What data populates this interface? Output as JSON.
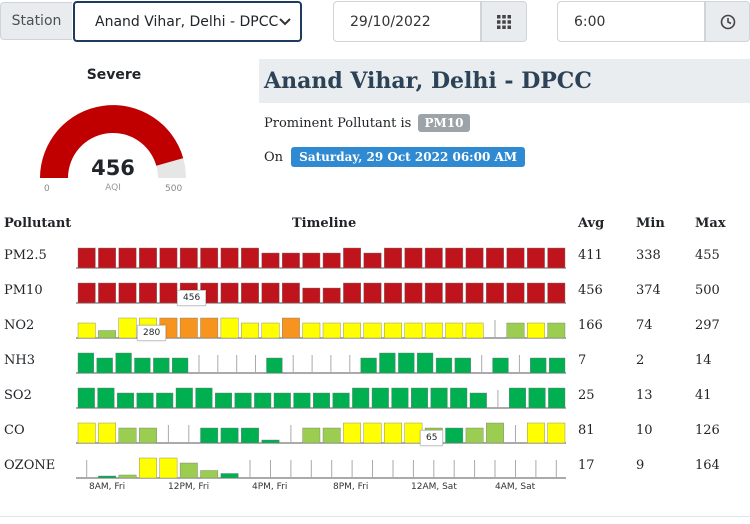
{
  "filters": {
    "station_label": "Station",
    "station_value": "Anand Vihar, Delhi - DPCC",
    "date_value": "29/10/2022",
    "time_value": "6:00",
    "calendar_icon": "calendar-grid-icon",
    "clock_icon": "clock-icon"
  },
  "gauge": {
    "status": "Severe",
    "value": "456",
    "unit": "AQI",
    "min": "0",
    "max": "500",
    "level": 0.912,
    "color": "#c00000"
  },
  "station": {
    "title": "Anand Vihar, Delhi - DPCC",
    "prominent_text": "Prominent Pollutant is",
    "prominent_pollutant": "PM10",
    "on_text": "On",
    "datetime": "Saturday, 29 Oct 2022 06:00 AM"
  },
  "table": {
    "headers": {
      "pollutant": "Pollutant",
      "timeline": "Timeline",
      "avg": "Avg",
      "min": "Min",
      "max": "Max"
    }
  },
  "chart_data": {
    "type": "bar",
    "x_tick_labels": [
      "8AM, Fri",
      "12PM, Fri",
      "4PM, Fri",
      "8PM, Fri",
      "12AM, Sat",
      "4AM, Sat"
    ],
    "series": [
      {
        "name": "PM2.5",
        "avg": "411",
        "min": "338",
        "max": "455",
        "levels": [
          2,
          2,
          2,
          2,
          2,
          2,
          2,
          2,
          2,
          1,
          1,
          1,
          1,
          2,
          1,
          2,
          2,
          2,
          2,
          2,
          2,
          2,
          2,
          2
        ],
        "color": "#c0141c"
      },
      {
        "name": "PM10",
        "avg": "456",
        "min": "374",
        "max": "500",
        "levels": [
          2,
          2,
          2,
          2,
          2,
          2,
          2,
          2,
          2,
          2,
          2,
          1,
          1,
          2,
          2,
          2,
          2,
          2,
          2,
          2,
          2,
          2,
          2,
          2
        ],
        "color": "#c0141c",
        "tooltip": "456"
      },
      {
        "name": "NO2",
        "avg": "166",
        "min": "74",
        "max": "297",
        "levels": [
          1,
          0.5,
          2,
          2,
          2,
          2,
          2,
          2,
          1,
          1,
          2,
          1,
          1,
          1,
          1,
          1,
          1,
          1,
          1,
          1,
          0,
          1,
          1,
          1
        ],
        "colors": [
          "#ffff00",
          "#9acd50",
          "#ffff00",
          "#ffff00",
          "#f7941d",
          "#f7941d",
          "#f7941d",
          "#ffff00",
          "#ffff00",
          "#ffff00",
          "#f7941d",
          "#ffff00",
          "#ffff00",
          "#ffff00",
          "#ffff00",
          "#ffff00",
          "#ffff00",
          "#ffff00",
          "#ffff00",
          "#ffff00",
          "#ffffff",
          "#9acd50",
          "#ffff00",
          "#9acd50"
        ],
        "tooltip": "280"
      },
      {
        "name": "NH3",
        "avg": "7",
        "min": "2",
        "max": "14",
        "levels": [
          2,
          1,
          2,
          1,
          1,
          1,
          0,
          0,
          0,
          0,
          1,
          0,
          0,
          0,
          0,
          1,
          2,
          2,
          2,
          1,
          1,
          0,
          1,
          0,
          1,
          1
        ],
        "color": "#00b050"
      },
      {
        "name": "SO2",
        "avg": "25",
        "min": "13",
        "max": "41",
        "levels": [
          2,
          2,
          1,
          1,
          1,
          2,
          2,
          1,
          1,
          1,
          1,
          1,
          1,
          1,
          2,
          2,
          2,
          2,
          2,
          2,
          1,
          0,
          2,
          2,
          2
        ],
        "color": "#00b050"
      },
      {
        "name": "CO",
        "avg": "81",
        "min": "10",
        "max": "126",
        "levels": [
          2,
          2,
          1,
          1,
          0,
          0,
          1,
          1,
          1,
          0.2,
          0,
          1,
          1,
          2,
          2,
          2,
          2,
          1,
          1,
          1,
          2,
          0,
          2,
          2
        ],
        "colors": [
          "#ffff00",
          "#ffff00",
          "#9acd50",
          "#9acd50",
          "#ffffff",
          "#ffffff",
          "#00b050",
          "#00b050",
          "#00b050",
          "#00b050",
          "#ffffff",
          "#9acd50",
          "#9acd50",
          "#ffff00",
          "#ffff00",
          "#ffff00",
          "#ffff00",
          "#9acd50",
          "#00b050",
          "#9acd50",
          "#9acd50",
          "#ffffff",
          "#ffff00",
          "#ffff00"
        ],
        "tooltip": "65"
      },
      {
        "name": "OZONE",
        "avg": "17",
        "min": "9",
        "max": "164",
        "levels": [
          0,
          0.1,
          0.2,
          2,
          2,
          1,
          0.5,
          0.3,
          0,
          0,
          0,
          0,
          0,
          0,
          0,
          0,
          0,
          0,
          0,
          0,
          0,
          0,
          0,
          0
        ],
        "colors": [
          "#00b050",
          "#00b050",
          "#9acd50",
          "#ffff00",
          "#ffff00",
          "#9acd50",
          "#9acd50",
          "#00b050",
          "#00b050",
          "#00b050",
          "#00b050",
          "#00b050",
          "#00b050",
          "#00b050",
          "#00b050",
          "#00b050",
          "#00b050",
          "#00b050",
          "#00b050",
          "#00b050",
          "#00b050",
          "#00b050",
          "#00b050",
          "#00b050"
        ]
      }
    ]
  }
}
